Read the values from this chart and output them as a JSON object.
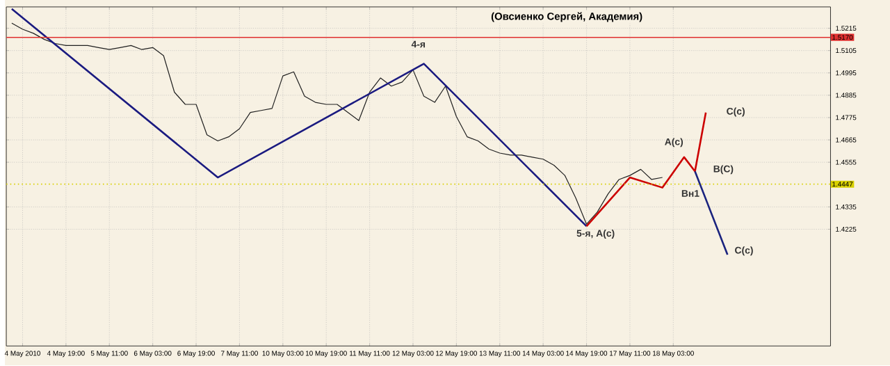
{
  "chart_data": {
    "type": "line",
    "subtitle": "(Овсиенко Сергей, Академия)",
    "categories": [
      null,
      "4 May 2010",
      null,
      null,
      null,
      "4 May 19:00",
      null,
      null,
      null,
      "5 May 11:00",
      null,
      null,
      null,
      "6 May 03:00",
      null,
      null,
      null,
      "6 May 19:00",
      null,
      null,
      null,
      "7 May 11:00",
      null,
      null,
      null,
      "10 May 03:00",
      null,
      null,
      null,
      "10 May 19:00",
      null,
      null,
      null,
      "11 May 11:00",
      null,
      null,
      null,
      "12 May 03:00",
      null,
      null,
      null,
      "12 May 19:00",
      null,
      null,
      null,
      "13 May 11:00",
      null,
      null,
      null,
      "14 May 03:00",
      null,
      null,
      null,
      "14 May 19:00",
      null,
      null,
      null,
      "17 May 11:00",
      null,
      null,
      null,
      "18 May 03:00",
      null,
      null,
      null,
      null,
      null,
      null,
      null,
      null,
      null,
      null,
      null,
      null,
      null,
      null
    ],
    "series": [
      {
        "color": "#202020",
        "values": [
          1.524,
          1.521,
          1.519,
          1.516,
          1.514,
          1.513,
          1.513,
          1.513,
          1.512,
          1.511,
          1.512,
          1.513,
          1.511,
          1.512,
          1.508,
          1.49,
          1.484,
          1.484,
          1.469,
          1.466,
          1.468,
          1.472,
          1.48,
          1.481,
          1.482,
          1.498,
          1.5,
          1.488,
          1.485,
          1.484,
          1.484,
          1.48,
          1.476,
          1.49,
          1.497,
          1.493,
          1.495,
          1.501,
          1.488,
          1.485,
          1.493,
          1.478,
          1.468,
          1.466,
          1.462,
          1.46,
          1.459,
          1.459,
          1.458,
          1.457,
          1.454,
          1.449,
          1.438,
          1.425,
          1.431,
          1.44,
          1.447,
          1.449,
          1.452,
          1.447,
          1.448,
          null,
          null,
          null,
          null,
          null,
          null,
          null,
          null,
          null,
          null,
          null,
          null,
          null,
          null,
          null
        ]
      },
      {
        "color": "#1a1a80",
        "values": [
          1.531,
          null,
          null,
          null,
          null,
          null,
          null,
          null,
          null,
          null,
          null,
          null,
          null,
          null,
          null,
          null,
          null,
          null,
          null,
          1.448,
          null,
          null,
          null,
          null,
          null,
          null,
          null,
          null,
          null,
          null,
          null,
          null,
          null,
          null,
          null,
          null,
          null,
          null,
          1.504,
          null,
          null,
          null,
          null,
          null,
          null,
          null,
          null,
          null,
          null,
          null,
          null,
          null,
          null,
          1.424,
          null,
          null,
          null,
          null,
          null,
          null,
          null,
          null,
          null,
          null,
          null,
          null,
          null,
          null,
          null,
          null,
          null,
          null,
          null,
          null,
          null,
          null
        ]
      },
      {
        "color": "#cc0000",
        "values": [
          null,
          null,
          null,
          null,
          null,
          null,
          null,
          null,
          null,
          null,
          null,
          null,
          null,
          null,
          null,
          null,
          null,
          null,
          null,
          null,
          null,
          null,
          null,
          null,
          null,
          null,
          null,
          null,
          null,
          null,
          null,
          null,
          null,
          null,
          null,
          null,
          null,
          null,
          null,
          null,
          null,
          null,
          null,
          null,
          null,
          null,
          null,
          null,
          null,
          null,
          null,
          null,
          null,
          1.424,
          null,
          null,
          null,
          1.448,
          null,
          null,
          1.443,
          null,
          1.458,
          1.451,
          1.48,
          null,
          null,
          null,
          null,
          null,
          null,
          null,
          null,
          null,
          null,
          null
        ]
      },
      {
        "color": "#1a237e",
        "values": [
          null,
          null,
          null,
          null,
          null,
          null,
          null,
          null,
          null,
          null,
          null,
          null,
          null,
          null,
          null,
          null,
          null,
          null,
          null,
          null,
          null,
          null,
          null,
          null,
          null,
          null,
          null,
          null,
          null,
          null,
          null,
          null,
          null,
          null,
          null,
          null,
          null,
          null,
          null,
          null,
          null,
          null,
          null,
          null,
          null,
          null,
          null,
          null,
          null,
          null,
          null,
          null,
          null,
          null,
          null,
          null,
          null,
          null,
          null,
          null,
          null,
          null,
          null,
          1.451,
          null,
          null,
          1.41,
          null,
          null,
          null,
          null,
          null,
          null,
          null,
          null,
          null
        ]
      }
    ],
    "ylim": [
      1.365,
      1.532
    ],
    "yticks": [
      1.4225,
      1.4335,
      1.4555,
      1.4665,
      1.4775,
      1.4885,
      1.4995,
      1.5105,
      1.5215
    ],
    "grid": true,
    "ref_lines": [
      {
        "axis": "y",
        "value": 1.517,
        "label": "1.5170",
        "color": "#e03030"
      },
      {
        "axis": "y",
        "value": 1.4447,
        "label": "1.4447",
        "color": "#d8d000",
        "line_style": "dotted"
      }
    ],
    "annotations": [
      "4-я",
      "5-я, A(c)",
      "Вн1",
      "A(c)",
      "B(C)",
      "C(c)",
      "C(c)"
    ]
  }
}
